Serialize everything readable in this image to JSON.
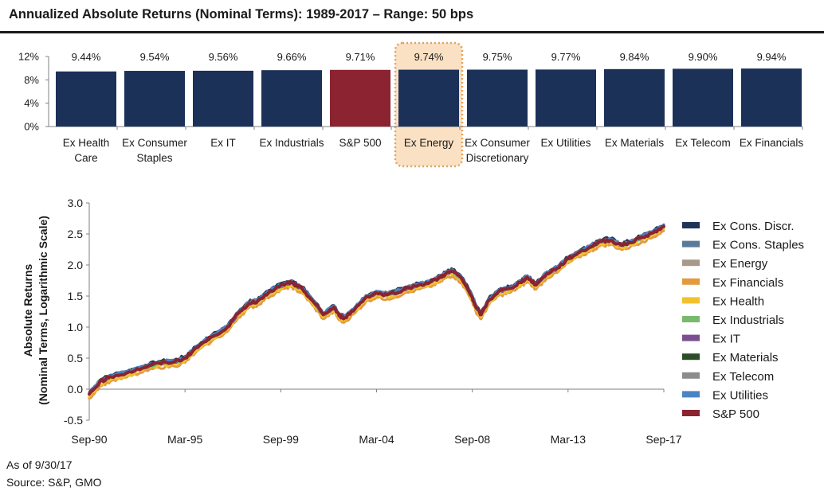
{
  "header": {
    "title": "Annualized Absolute Returns (Nominal Terms): 1989-2017 – Range: 50 bps"
  },
  "footer": {
    "as_of": "As of 9/30/17",
    "source": "Source: S&P, GMO"
  },
  "colors": {
    "navy": "#1c3158",
    "sp500_red": "#8b2330",
    "highlight_fill": "#fbe1c4",
    "highlight_border": "#e3a25b"
  },
  "chart_data": [
    {
      "type": "bar",
      "categories": [
        "Ex Health Care",
        "Ex Consumer Staples",
        "Ex IT",
        "Ex Industrials",
        "S&P 500",
        "Ex Energy",
        "Ex Consumer Discretionary",
        "Ex Utilities",
        "Ex Materials",
        "Ex Telecom",
        "Ex Financials"
      ],
      "category_lines": [
        [
          "Ex Health",
          "Care"
        ],
        [
          "Ex Consumer",
          "Staples"
        ],
        [
          "Ex IT"
        ],
        [
          "Ex Industrials"
        ],
        [
          "S&P 500"
        ],
        [
          "Ex Energy"
        ],
        [
          "Ex Consumer",
          "Discretionary"
        ],
        [
          "Ex Utilities"
        ],
        [
          "Ex Materials"
        ],
        [
          "Ex Telecom"
        ],
        [
          "Ex Financials"
        ]
      ],
      "values": [
        9.44,
        9.54,
        9.56,
        9.66,
        9.71,
        9.74,
        9.75,
        9.77,
        9.84,
        9.9,
        9.94
      ],
      "data_labels": [
        "9.44%",
        "9.54%",
        "9.56%",
        "9.66%",
        "9.71%",
        "9.74%",
        "9.75%",
        "9.77%",
        "9.84%",
        "9.90%",
        "9.94%"
      ],
      "highlighted": "Ex Energy",
      "highlighted_color": "S&P 500",
      "ylim": [
        0,
        12
      ],
      "yticks": [
        0,
        4,
        8,
        12
      ],
      "ytick_labels": [
        "0%",
        "4%",
        "8%",
        "12%"
      ],
      "grid": false
    },
    {
      "type": "line",
      "ylabel": [
        "Absolute Returns",
        "(Nominal Terms, Logarithmic  Scale)"
      ],
      "ylim": [
        -0.5,
        3.0
      ],
      "yticks": [
        -0.5,
        0.0,
        0.5,
        1.0,
        1.5,
        2.0,
        2.5,
        3.0
      ],
      "ytick_labels": [
        "-0.5",
        "0.0",
        "0.5",
        "1.0",
        "1.5",
        "2.0",
        "2.5",
        "3.0"
      ],
      "xlim": [
        "1990-09",
        "2017-09"
      ],
      "xtick_labels": [
        "Sep-90",
        "Mar-95",
        "Sep-99",
        "Mar-04",
        "Sep-08",
        "Mar-13",
        "Sep-17"
      ],
      "grid": false,
      "legend_position": "right",
      "base_x": [
        "1990-09",
        "1991-03",
        "1991-09",
        "1992-06",
        "1993-03",
        "1993-12",
        "1994-09",
        "1995-03",
        "1995-09",
        "1996-06",
        "1997-03",
        "1997-09",
        "1998-03",
        "1998-08",
        "1998-12",
        "1999-06",
        "1999-12",
        "2000-03",
        "2000-06",
        "2000-09",
        "2001-03",
        "2001-09",
        "2002-03",
        "2002-06",
        "2002-09",
        "2003-03",
        "2003-09",
        "2004-03",
        "2004-09",
        "2005-06",
        "2006-03",
        "2006-09",
        "2007-03",
        "2007-06",
        "2007-10",
        "2008-03",
        "2008-09",
        "2008-11",
        "2009-02",
        "2009-06",
        "2009-12",
        "2010-06",
        "2010-12",
        "2011-04",
        "2011-09",
        "2012-03",
        "2012-09",
        "2013-03",
        "2013-09",
        "2014-03",
        "2014-09",
        "2015-03",
        "2015-09",
        "2016-02",
        "2016-09",
        "2017-03",
        "2017-09"
      ],
      "base_y": [
        -0.08,
        0.12,
        0.2,
        0.26,
        0.34,
        0.42,
        0.44,
        0.5,
        0.66,
        0.84,
        1.0,
        1.22,
        1.38,
        1.42,
        1.52,
        1.62,
        1.7,
        1.72,
        1.66,
        1.62,
        1.42,
        1.2,
        1.32,
        1.18,
        1.15,
        1.3,
        1.48,
        1.55,
        1.52,
        1.6,
        1.68,
        1.72,
        1.8,
        1.86,
        1.9,
        1.78,
        1.48,
        1.32,
        1.2,
        1.42,
        1.58,
        1.62,
        1.72,
        1.8,
        1.68,
        1.86,
        1.95,
        2.1,
        2.2,
        2.28,
        2.38,
        2.4,
        2.32,
        2.36,
        2.45,
        2.52,
        2.62
      ],
      "series": [
        {
          "name": "Ex Cons. Discr.",
          "color": "#1f3457",
          "offset": 0.03
        },
        {
          "name": "Ex Cons. Staples",
          "color": "#5b7a99",
          "offset": 0.02
        },
        {
          "name": "Ex Energy",
          "color": "#a8998a",
          "offset": -0.01
        },
        {
          "name": "Ex Financials",
          "color": "#e39a3f",
          "offset": -0.07
        },
        {
          "name": "Ex Health",
          "color": "#f2c12e",
          "offset": -0.04
        },
        {
          "name": "Ex Industrials",
          "color": "#78b96b",
          "offset": 0.0
        },
        {
          "name": "Ex IT",
          "color": "#7a4f8e",
          "offset": 0.0
        },
        {
          "name": "Ex Materials",
          "color": "#2d4c2a",
          "offset": 0.01
        },
        {
          "name": "Ex Telecom",
          "color": "#8c8c8c",
          "offset": 0.0
        },
        {
          "name": "Ex Utilities",
          "color": "#4a84c4",
          "offset": 0.02
        },
        {
          "name": "S&P 500",
          "color": "#8b2330",
          "offset": 0.0
        }
      ]
    }
  ]
}
